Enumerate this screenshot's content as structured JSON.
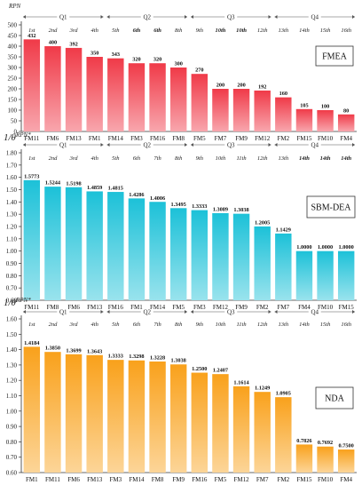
{
  "chart_data": [
    {
      "type": "bar",
      "ylabel": "RPN",
      "ylim": [
        0,
        500
      ],
      "yticks": [
        0,
        50,
        100,
        150,
        200,
        250,
        300,
        350,
        400,
        450,
        500
      ],
      "ytick_labels": [
        "0",
        "50",
        "100",
        "150",
        "200",
        "250",
        "300",
        "350",
        "400",
        "450",
        "500"
      ],
      "categories": [
        "FM11",
        "FM6",
        "FM13",
        "FM1",
        "FM14",
        "FM3",
        "FM16",
        "FM8",
        "FM5",
        "FM7",
        "FM9",
        "FM12",
        "FM2",
        "FM15",
        "FM10",
        "FM4"
      ],
      "values": [
        432,
        400,
        392,
        350,
        343,
        320,
        320,
        300,
        270,
        200,
        200,
        192,
        160,
        105,
        100,
        80
      ],
      "value_labels": [
        "432",
        "400",
        "392",
        "350",
        "343",
        "320",
        "320",
        "300",
        "270",
        "200",
        "200",
        "192",
        "160",
        "105",
        "100",
        "80"
      ],
      "ranks": [
        "1st",
        "2nd",
        "3rd",
        "4th",
        "5th",
        "6th",
        "6th",
        "8th",
        "9th",
        "10th",
        "10th",
        "12th",
        "13th",
        "14th",
        "15th",
        "16th"
      ],
      "ranks_bold": [
        false,
        false,
        false,
        false,
        false,
        true,
        true,
        false,
        false,
        true,
        true,
        false,
        false,
        false,
        false,
        false
      ],
      "quarters": [
        {
          "label": "Q1",
          "span": [
            0,
            3
          ]
        },
        {
          "label": "Q2",
          "span": [
            4,
            7
          ]
        },
        {
          "label": "Q3",
          "span": [
            8,
            11
          ]
        },
        {
          "label": "Q4",
          "span": [
            12,
            15
          ]
        }
      ],
      "legend": "FMEA",
      "legend_position": "top-right",
      "color": "#f03a48",
      "grid": false
    },
    {
      "type": "bar",
      "ylabel": "1/θ^RPN*",
      "ylabel_parts": {
        "base": "1/θ",
        "sup": "RPN*"
      },
      "ylim": [
        0.6,
        1.8
      ],
      "yticks": [
        0.6,
        0.7,
        0.8,
        0.9,
        1.0,
        1.1,
        1.2,
        1.3,
        1.4,
        1.5,
        1.6,
        1.7,
        1.8
      ],
      "ytick_labels": [
        "0.60",
        "0.70",
        "0.80",
        "0.90",
        "1.00",
        "1.10",
        "1.20",
        "1.30",
        "1.40",
        "1.50",
        "1.60",
        "1.70",
        "1.80"
      ],
      "categories": [
        "FM11",
        "FM8",
        "FM6",
        "FM13",
        "FM16",
        "FM1",
        "FM14",
        "FM5",
        "FM3",
        "FM12",
        "FM9",
        "FM2",
        "FM7",
        "FM4",
        "FM10",
        "FM15"
      ],
      "values": [
        1.5773,
        1.5244,
        1.5198,
        1.4859,
        1.4815,
        1.4286,
        1.4006,
        1.3495,
        1.3333,
        1.3089,
        1.3038,
        1.2005,
        1.1429,
        1.0,
        1.0,
        1.0
      ],
      "value_labels": [
        "1.5773",
        "1.5244",
        "1.5198",
        "1.4859",
        "1.4815",
        "1.4286",
        "1.4006",
        "1.3495",
        "1.3333",
        "1.3089",
        "1.3038",
        "1.2005",
        "1.1429",
        "1.0000",
        "1.0000",
        "1.0000"
      ],
      "ranks": [
        "1st",
        "2nd",
        "3rd",
        "4th",
        "5th",
        "6th",
        "7th",
        "8th",
        "9th",
        "10th",
        "11th",
        "12th",
        "13th",
        "14th",
        "14th",
        "14th"
      ],
      "ranks_bold": [
        false,
        false,
        false,
        false,
        false,
        false,
        false,
        false,
        false,
        false,
        false,
        false,
        false,
        true,
        true,
        true
      ],
      "quarters": [
        {
          "label": "Q1",
          "span": [
            0,
            3
          ]
        },
        {
          "label": "Q2",
          "span": [
            4,
            7
          ]
        },
        {
          "label": "Q3",
          "span": [
            8,
            11
          ]
        },
        {
          "label": "Q4",
          "span": [
            12,
            15
          ]
        }
      ],
      "legend": "SBM-DEA",
      "legend_position": "top-right",
      "color": "#1cc1d8",
      "grid": false
    },
    {
      "type": "bar",
      "ylabel": "1/θ^RPN*",
      "ylabel_parts": {
        "base": "1/θ",
        "sup": "RPN*"
      },
      "ylim": [
        0.6,
        1.6
      ],
      "yticks": [
        0.6,
        0.7,
        0.8,
        0.9,
        1.0,
        1.1,
        1.2,
        1.3,
        1.4,
        1.5,
        1.6
      ],
      "ytick_labels": [
        "0.60",
        "0.70",
        "0.80",
        "0.90",
        "1.00",
        "1.10",
        "1.20",
        "1.30",
        "1.40",
        "1.50",
        "1.60"
      ],
      "categories": [
        "FM1",
        "FM11",
        "FM6",
        "FM13",
        "FM3",
        "FM14",
        "FM8",
        "FM9",
        "FM16",
        "FM5",
        "FM12",
        "FM7",
        "FM2",
        "FM15",
        "FM10",
        "FM4"
      ],
      "values": [
        1.4184,
        1.385,
        1.3699,
        1.3643,
        1.3333,
        1.3298,
        1.3228,
        1.3038,
        1.25,
        1.2407,
        1.1614,
        1.1249,
        1.0905,
        0.7826,
        0.7692,
        0.75
      ],
      "value_labels": [
        "1.4184",
        "1.3850",
        "1.3699",
        "1.3643",
        "1.3333",
        "1.3298",
        "1.3228",
        "1.3038",
        "1.2500",
        "1.2407",
        "1.1614",
        "1.1249",
        "1.0905",
        "0.7826",
        "0.7692",
        "0.7500"
      ],
      "ranks": [
        "1st",
        "2nd",
        "3rd",
        "4th",
        "5th",
        "6th",
        "7th",
        "8th",
        "9th",
        "10th",
        "11th",
        "12th",
        "13th",
        "14th",
        "15th",
        "16th"
      ],
      "ranks_bold": [
        false,
        false,
        false,
        false,
        false,
        false,
        false,
        false,
        false,
        false,
        false,
        false,
        false,
        false,
        false,
        false
      ],
      "quarters": [
        {
          "label": "Q1",
          "span": [
            0,
            3
          ]
        },
        {
          "label": "Q2",
          "span": [
            4,
            7
          ]
        },
        {
          "label": "Q3",
          "span": [
            8,
            11
          ]
        },
        {
          "label": "Q4",
          "span": [
            12,
            15
          ]
        }
      ],
      "legend": "NDA",
      "legend_position": "top-right",
      "color": "#f9a11b",
      "grid": false
    }
  ]
}
